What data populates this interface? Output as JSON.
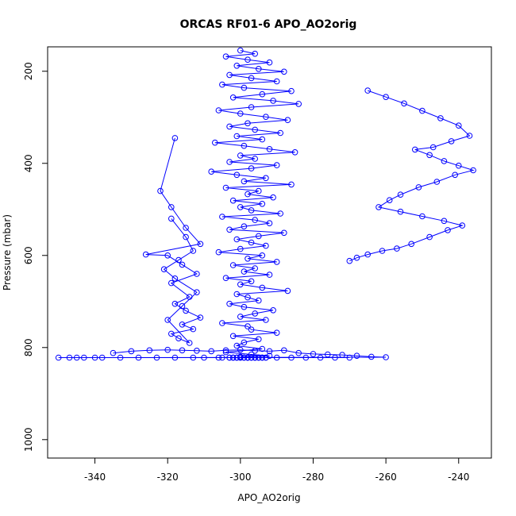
{
  "chart_data": {
    "type": "scatter",
    "title": "ORCAS RF01-6 APO_AO2orig",
    "xlabel": "APO_AO2orig",
    "ylabel": "Pressure (mbar)",
    "xlim": [
      -353,
      -231
    ],
    "ylim": [
      1040,
      147
    ],
    "y_reversed": true,
    "x_ticks": [
      -340,
      -320,
      -300,
      -280,
      -260,
      -240
    ],
    "y_ticks": [
      200,
      400,
      600,
      800,
      1000
    ],
    "grid": false,
    "legend": "none",
    "series_color": "#0000ff",
    "marker": "open-circle",
    "connected": true,
    "series": [
      {
        "x": [
          -300,
          -296,
          -304,
          -298,
          -292,
          -301,
          -295,
          -288,
          -303,
          -297,
          -290,
          -305,
          -299,
          -286,
          -294,
          -302,
          -291,
          -284,
          -297,
          -306,
          -300,
          -293,
          -287,
          -298,
          -303,
          -296,
          -289,
          -301,
          -294,
          -307,
          -299,
          -292,
          -285,
          -300,
          -296,
          -303,
          -290,
          -297,
          -308,
          -301,
          -293,
          -299,
          -286,
          -304,
          -295,
          -298,
          -291,
          -302,
          -294,
          -300,
          -297,
          -289,
          -305,
          -296,
          -292,
          -299,
          -303,
          -288,
          -295,
          -301,
          -297,
          -293,
          -300,
          -306,
          -294,
          -298,
          -290,
          -302,
          -296,
          -299,
          -292,
          -304,
          -297,
          -300,
          -294,
          -287,
          -301,
          -298,
          -295,
          -303,
          -299,
          -291,
          -296,
          -300,
          -293,
          -305,
          -298,
          -297,
          -290,
          -302,
          -295,
          -299,
          -301,
          -294,
          -304,
          -297,
          -292,
          -300,
          -296,
          -298,
          -303,
          -293,
          -299,
          -295,
          -301,
          -297,
          -294,
          -300,
          -296,
          -302,
          -298,
          -295,
          -305,
          -299,
          -293,
          -301,
          -297,
          -300,
          -296,
          -303,
          -294,
          -298,
          -300,
          -297,
          -302,
          -295,
          -299,
          -301,
          -296,
          -298
        ],
        "y": [
          155,
          162,
          168,
          175,
          181,
          188,
          195,
          201,
          208,
          215,
          222,
          229,
          236,
          243,
          250,
          257,
          264,
          271,
          278,
          285,
          292,
          299,
          306,
          313,
          320,
          327,
          334,
          341,
          348,
          355,
          362,
          369,
          376,
          383,
          390,
          397,
          404,
          411,
          418,
          425,
          432,
          439,
          446,
          453,
          460,
          467,
          474,
          481,
          488,
          495,
          502,
          509,
          516,
          523,
          530,
          537,
          544,
          551,
          558,
          565,
          572,
          579,
          586,
          593,
          600,
          607,
          614,
          621,
          628,
          635,
          642,
          649,
          656,
          663,
          670,
          677,
          684,
          691,
          698,
          705,
          712,
          719,
          726,
          733,
          740,
          747,
          754,
          761,
          768,
          775,
          782,
          789,
          796,
          803,
          810,
          815,
          818,
          820,
          822,
          822,
          822,
          822,
          822,
          822,
          822,
          822,
          822,
          822,
          822,
          822,
          822,
          822,
          822,
          822,
          822,
          822,
          822,
          822,
          822,
          822,
          822,
          822,
          822,
          822,
          822,
          822,
          822,
          822,
          822,
          822
        ]
      },
      {
        "x": [
          -335,
          -330,
          -325,
          -320,
          -316,
          -312,
          -308,
          -304,
          -300,
          -296,
          -292,
          -288,
          -284,
          -280,
          -276,
          -272,
          -268,
          -264,
          -260,
          -340,
          -345,
          -350,
          -347,
          -343,
          -338,
          -333,
          -328,
          -323,
          -318,
          -313,
          -310,
          -306,
          -302,
          -298,
          -294,
          -290,
          -286,
          -282,
          -278,
          -274,
          -270
        ],
        "y": [
          812,
          808,
          806,
          805,
          806,
          807,
          808,
          806,
          805,
          807,
          808,
          806,
          812,
          814,
          815,
          816,
          818,
          820,
          821,
          822,
          822,
          822,
          822,
          822,
          822,
          822,
          822,
          822,
          822,
          822,
          822,
          822,
          822,
          822,
          822,
          822,
          822,
          822,
          822,
          822,
          822
        ]
      },
      {
        "x": [
          -265,
          -260,
          -255,
          -250,
          -245,
          -240,
          -237,
          -242,
          -247,
          -252,
          -248,
          -244,
          -240,
          -236,
          -241,
          -246,
          -251,
          -256,
          -259,
          -262,
          -256,
          -250,
          -244,
          -239,
          -243,
          -248,
          -253,
          -257,
          -261,
          -265,
          -268,
          -270
        ],
        "y": [
          242,
          256,
          270,
          286,
          302,
          318,
          340,
          352,
          365,
          370,
          382,
          395,
          405,
          415,
          425,
          440,
          452,
          468,
          480,
          495,
          505,
          515,
          525,
          535,
          545,
          560,
          575,
          585,
          590,
          598,
          605,
          612
        ]
      },
      {
        "x": [
          -318,
          -322,
          -319,
          -315,
          -311,
          -326,
          -320,
          -316,
          -312,
          -319,
          -314,
          -318,
          -315,
          -311,
          -316,
          -313,
          -319,
          -317,
          -314,
          -320,
          -316,
          -312,
          -318,
          -321,
          -317,
          -313,
          -315,
          -319
        ],
        "y": [
          345,
          460,
          495,
          540,
          575,
          598,
          600,
          620,
          640,
          660,
          690,
          705,
          720,
          735,
          750,
          760,
          770,
          780,
          790,
          740,
          710,
          680,
          650,
          630,
          610,
          590,
          560,
          520
        ]
      }
    ]
  }
}
